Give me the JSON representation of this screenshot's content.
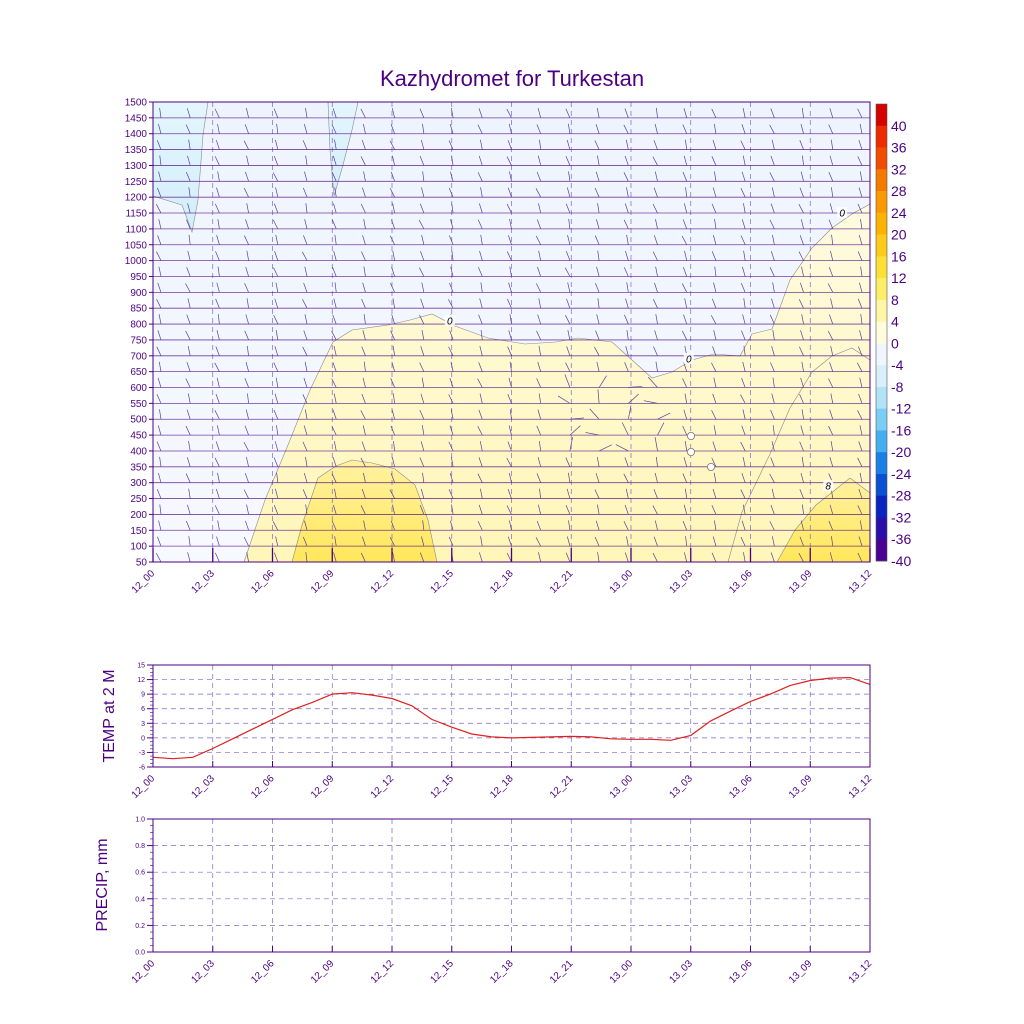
{
  "colors": {
    "ink": "#4b0082",
    "grid": "#7b68c8",
    "temp_line": "#e02020",
    "barb": "#5a3f9a"
  },
  "chart_data": [
    {
      "type": "heatmap",
      "title": "Kazhydromet for Turkestan",
      "xlabel": "",
      "ylabel": "",
      "x_ticks": [
        "12_00",
        "12_03",
        "12_06",
        "12_09",
        "12_12",
        "12_15",
        "12_18",
        "12_21",
        "13_00",
        "13_03",
        "13_06",
        "13_09",
        "13_12"
      ],
      "y_ticks": [
        "50",
        "100",
        "150",
        "200",
        "250",
        "300",
        "350",
        "400",
        "450",
        "500",
        "550",
        "600",
        "650",
        "700",
        "750",
        "800",
        "850",
        "900",
        "950",
        "1000",
        "1050",
        "1100",
        "1150",
        "1200",
        "1250",
        "1300",
        "1350",
        "1400",
        "1450",
        "1500"
      ],
      "ylim": [
        50,
        1500
      ],
      "colorbar": {
        "levels": [
          "40",
          "36",
          "32",
          "28",
          "24",
          "20",
          "16",
          "12",
          "8",
          "4",
          "0",
          "-4",
          "-8",
          "-12",
          "-16",
          "-20",
          "-24",
          "-28",
          "-32",
          "-36",
          "-40"
        ],
        "colors": [
          "#d50000",
          "#ee2a00",
          "#f24c00",
          "#f77a00",
          "#fb9a00",
          "#fcb300",
          "#fdca1b",
          "#fde035",
          "#fdee68",
          "#fff6a5",
          "#fffcdc",
          "#f0f6ff",
          "#d8f0fb",
          "#b0e2f8",
          "#7ccdf4",
          "#45aef0",
          "#1b7fe6",
          "#0a50d2",
          "#0a24c0",
          "#2a10a8",
          "#4a0090"
        ]
      },
      "contour_labels": [
        {
          "text": "0",
          "x": "12_14.9",
          "y": 810
        },
        {
          "text": "0",
          "x": "13_02.9",
          "y": 690
        },
        {
          "text": "0",
          "x": "13_10.6",
          "y": 1150
        },
        {
          "text": "8",
          "x": "13_09.9",
          "y": 290
        }
      ]
    },
    {
      "type": "line",
      "ylabel": "TEMP at 2 M",
      "x_ticks": [
        "12_00",
        "12_03",
        "12_06",
        "12_09",
        "12_12",
        "12_15",
        "12_18",
        "12_21",
        "13_00",
        "13_03",
        "13_06",
        "13_09",
        "13_12"
      ],
      "y_ticks": [
        "15",
        "12",
        "9",
        "6",
        "3",
        "0",
        "-3",
        "-6"
      ],
      "ylim": [
        -6,
        15
      ],
      "series": [
        {
          "values": [
            -4.0,
            -4.3,
            -4.0,
            -2.2,
            -0.2,
            1.8,
            3.8,
            5.8,
            7.3,
            9.0,
            9.3,
            8.8,
            8.1,
            6.6,
            3.8,
            2.2,
            0.8,
            0.2,
            0.0,
            0.1,
            0.2,
            0.3,
            0.2,
            -0.2,
            -0.3,
            -0.3,
            -0.5,
            0.5,
            3.5,
            5.5,
            7.5,
            9.0,
            10.8,
            11.8,
            12.3,
            12.4,
            11.0
          ]
        }
      ]
    },
    {
      "type": "line",
      "ylabel": "PRECIP, mm",
      "x_ticks": [
        "12_00",
        "12_03",
        "12_06",
        "12_09",
        "12_12",
        "12_15",
        "12_18",
        "12_21",
        "13_00",
        "13_03",
        "13_06",
        "13_09",
        "13_12"
      ],
      "y_ticks": [
        "1.0",
        "0.8",
        "0.6",
        "0.4",
        "0.2",
        "0.0"
      ],
      "ylim": [
        0,
        1.0
      ],
      "series": []
    }
  ]
}
